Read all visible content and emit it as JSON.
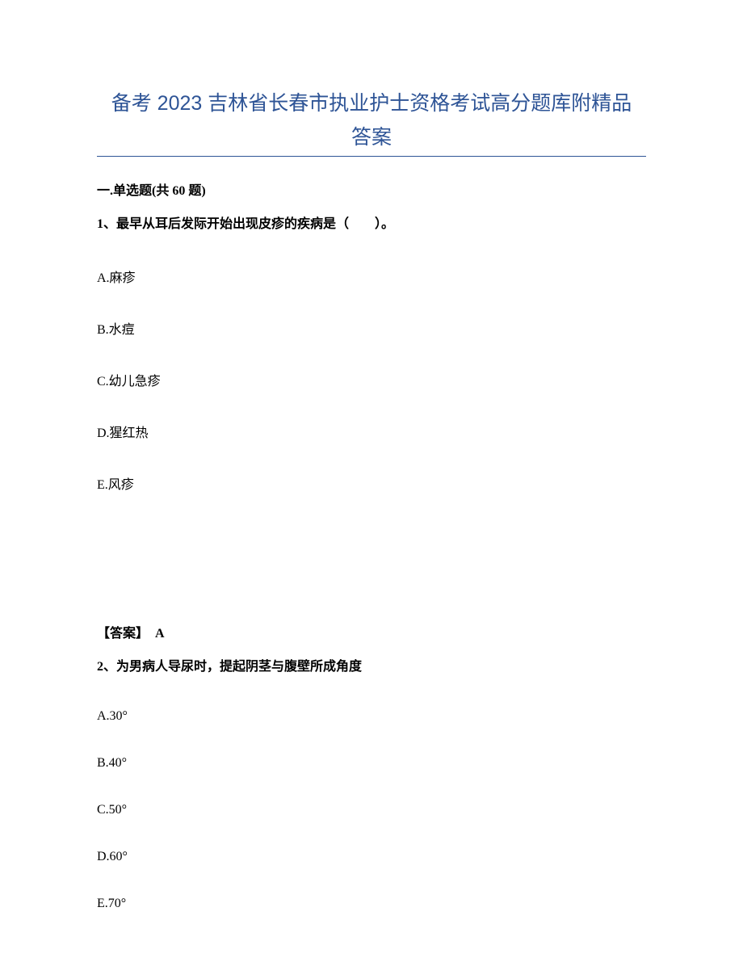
{
  "title": {
    "line1": "备考 2023 吉林省长春市执业护士资格考试高分题库附精品",
    "line2": "答案",
    "color": "#2e5496",
    "fontsize": 25
  },
  "section_header": "一.单选题(共 60 题)",
  "questions": [
    {
      "number": "1、",
      "text": "最早从耳后发际开始出现皮疹的疾病是（　　）。",
      "options": [
        "A.麻疹",
        "B.水痘",
        "C.幼儿急疹",
        "D.猩红热",
        "E.风疹"
      ],
      "answer_label": "【答案】",
      "answer_value": "A"
    },
    {
      "number": "2、",
      "text": "为男病人导尿时，提起阴茎与腹壁所成角度",
      "options": [
        "A.30°",
        "B.40°",
        "C.50°",
        "D.60°",
        "E.70°"
      ]
    }
  ],
  "colors": {
    "title": "#2e5496",
    "text": "#000000",
    "background": "#ffffff"
  }
}
